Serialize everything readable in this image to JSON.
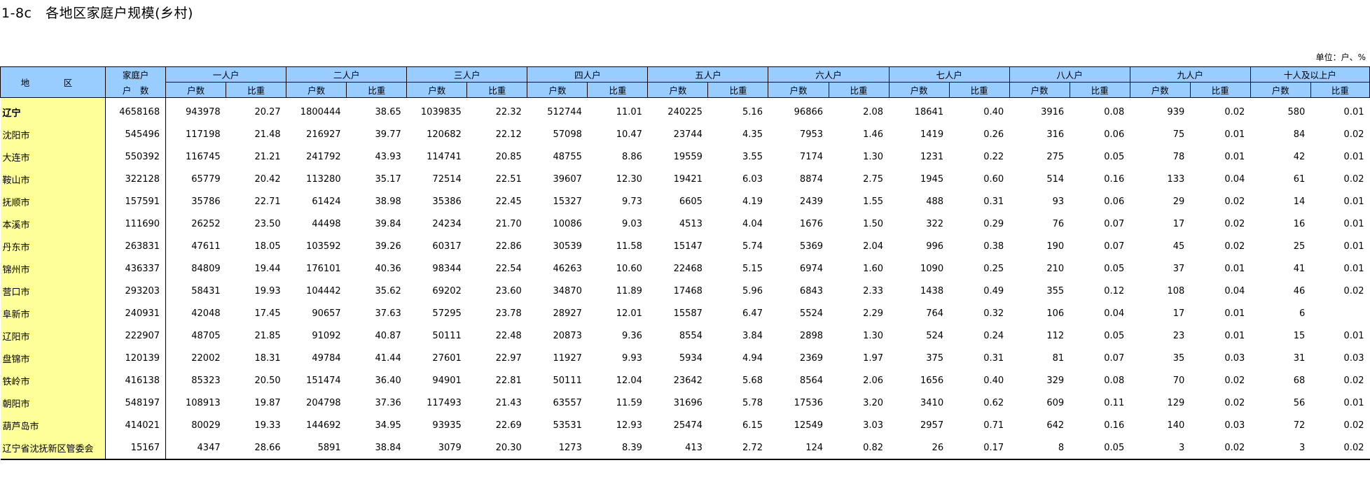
{
  "title": "1-8c   各地区家庭户规模(乡村)",
  "unit": "单位：户、%",
  "header": {
    "region": "地　区",
    "total_top": "家庭户",
    "total_bottom": "户　数",
    "groups": [
      "一人户",
      "二人户",
      "三人户",
      "四人户",
      "五人户",
      "六人户",
      "七人户",
      "八人户",
      "九人户",
      "十人及以上户"
    ],
    "sub_count": "户数",
    "sub_ratio": "比重"
  },
  "rows": [
    {
      "region": "辽宁",
      "total": "4658168",
      "cells": [
        "943978",
        "20.27",
        "1800444",
        "38.65",
        "1039835",
        "22.32",
        "512744",
        "11.01",
        "240225",
        "5.16",
        "96866",
        "2.08",
        "18641",
        "0.40",
        "3916",
        "0.08",
        "939",
        "0.02",
        "580",
        "0.01"
      ]
    },
    {
      "region": "沈阳市",
      "total": "545496",
      "cells": [
        "117198",
        "21.48",
        "216927",
        "39.77",
        "120682",
        "22.12",
        "57098",
        "10.47",
        "23744",
        "4.35",
        "7953",
        "1.46",
        "1419",
        "0.26",
        "316",
        "0.06",
        "75",
        "0.01",
        "84",
        "0.02"
      ]
    },
    {
      "region": "大连市",
      "total": "550392",
      "cells": [
        "116745",
        "21.21",
        "241792",
        "43.93",
        "114741",
        "20.85",
        "48755",
        "8.86",
        "19559",
        "3.55",
        "7174",
        "1.30",
        "1231",
        "0.22",
        "275",
        "0.05",
        "78",
        "0.01",
        "42",
        "0.01"
      ]
    },
    {
      "region": "鞍山市",
      "total": "322128",
      "cells": [
        "65779",
        "20.42",
        "113280",
        "35.17",
        "72514",
        "22.51",
        "39607",
        "12.30",
        "19421",
        "6.03",
        "8874",
        "2.75",
        "1945",
        "0.60",
        "514",
        "0.16",
        "133",
        "0.04",
        "61",
        "0.02"
      ]
    },
    {
      "region": "抚顺市",
      "total": "157591",
      "cells": [
        "35786",
        "22.71",
        "61424",
        "38.98",
        "35386",
        "22.45",
        "15327",
        "9.73",
        "6605",
        "4.19",
        "2439",
        "1.55",
        "488",
        "0.31",
        "93",
        "0.06",
        "29",
        "0.02",
        "14",
        "0.01"
      ]
    },
    {
      "region": "本溪市",
      "total": "111690",
      "cells": [
        "26252",
        "23.50",
        "44498",
        "39.84",
        "24234",
        "21.70",
        "10086",
        "9.03",
        "4513",
        "4.04",
        "1676",
        "1.50",
        "322",
        "0.29",
        "76",
        "0.07",
        "17",
        "0.02",
        "16",
        "0.01"
      ]
    },
    {
      "region": "丹东市",
      "total": "263831",
      "cells": [
        "47611",
        "18.05",
        "103592",
        "39.26",
        "60317",
        "22.86",
        "30539",
        "11.58",
        "15147",
        "5.74",
        "5369",
        "2.04",
        "996",
        "0.38",
        "190",
        "0.07",
        "45",
        "0.02",
        "25",
        "0.01"
      ]
    },
    {
      "region": "锦州市",
      "total": "436337",
      "cells": [
        "84809",
        "19.44",
        "176101",
        "40.36",
        "98344",
        "22.54",
        "46263",
        "10.60",
        "22468",
        "5.15",
        "6974",
        "1.60",
        "1090",
        "0.25",
        "210",
        "0.05",
        "37",
        "0.01",
        "41",
        "0.01"
      ]
    },
    {
      "region": "营口市",
      "total": "293203",
      "cells": [
        "58431",
        "19.93",
        "104442",
        "35.62",
        "69202",
        "23.60",
        "34870",
        "11.89",
        "17468",
        "5.96",
        "6843",
        "2.33",
        "1438",
        "0.49",
        "355",
        "0.12",
        "108",
        "0.04",
        "46",
        "0.02"
      ]
    },
    {
      "region": "阜新市",
      "total": "240931",
      "cells": [
        "42048",
        "17.45",
        "90657",
        "37.63",
        "57295",
        "23.78",
        "28927",
        "12.01",
        "15587",
        "6.47",
        "5524",
        "2.29",
        "764",
        "0.32",
        "106",
        "0.04",
        "17",
        "0.01",
        "6",
        ""
      ]
    },
    {
      "region": "辽阳市",
      "total": "222907",
      "cells": [
        "48705",
        "21.85",
        "91092",
        "40.87",
        "50111",
        "22.48",
        "20873",
        "9.36",
        "8554",
        "3.84",
        "2898",
        "1.30",
        "524",
        "0.24",
        "112",
        "0.05",
        "23",
        "0.01",
        "15",
        "0.01"
      ]
    },
    {
      "region": "盘锦市",
      "total": "120139",
      "cells": [
        "22002",
        "18.31",
        "49784",
        "41.44",
        "27601",
        "22.97",
        "11927",
        "9.93",
        "5934",
        "4.94",
        "2369",
        "1.97",
        "375",
        "0.31",
        "81",
        "0.07",
        "35",
        "0.03",
        "31",
        "0.03"
      ]
    },
    {
      "region": "铁岭市",
      "total": "416138",
      "cells": [
        "85323",
        "20.50",
        "151474",
        "36.40",
        "94901",
        "22.81",
        "50111",
        "12.04",
        "23642",
        "5.68",
        "8564",
        "2.06",
        "1656",
        "0.40",
        "329",
        "0.08",
        "70",
        "0.02",
        "68",
        "0.02"
      ]
    },
    {
      "region": "朝阳市",
      "total": "548197",
      "cells": [
        "108913",
        "19.87",
        "204798",
        "37.36",
        "117493",
        "21.43",
        "63557",
        "11.59",
        "31696",
        "5.78",
        "17536",
        "3.20",
        "3410",
        "0.62",
        "609",
        "0.11",
        "129",
        "0.02",
        "56",
        "0.01"
      ]
    },
    {
      "region": "葫芦岛市",
      "total": "414021",
      "cells": [
        "80029",
        "19.33",
        "144692",
        "34.95",
        "93935",
        "22.69",
        "53531",
        "12.93",
        "25474",
        "6.15",
        "12549",
        "3.03",
        "2957",
        "0.71",
        "642",
        "0.16",
        "140",
        "0.03",
        "72",
        "0.02"
      ]
    },
    {
      "region": "辽宁省沈抚新区管委会",
      "total": "15167",
      "cells": [
        "4347",
        "28.66",
        "5891",
        "38.84",
        "3079",
        "20.30",
        "1273",
        "8.39",
        "413",
        "2.72",
        "124",
        "0.82",
        "26",
        "0.17",
        "8",
        "0.05",
        "3",
        "0.02",
        "3",
        "0.02"
      ]
    }
  ]
}
